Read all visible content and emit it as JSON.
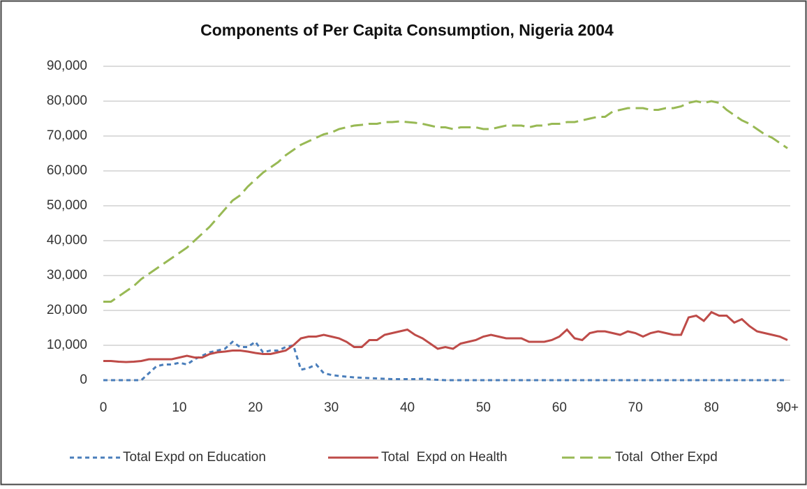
{
  "chart_data": {
    "type": "line",
    "title": "Components of Per Capita Consumption, Nigeria 2004",
    "x": [
      0,
      1,
      2,
      3,
      4,
      5,
      6,
      7,
      8,
      9,
      10,
      11,
      12,
      13,
      14,
      15,
      16,
      17,
      18,
      19,
      20,
      21,
      22,
      23,
      24,
      25,
      26,
      27,
      28,
      29,
      30,
      31,
      32,
      33,
      34,
      35,
      36,
      37,
      38,
      39,
      40,
      41,
      42,
      43,
      44,
      45,
      46,
      47,
      48,
      49,
      50,
      51,
      52,
      53,
      54,
      55,
      56,
      57,
      58,
      59,
      60,
      61,
      62,
      63,
      64,
      65,
      66,
      67,
      68,
      69,
      70,
      71,
      72,
      73,
      74,
      75,
      76,
      77,
      78,
      79,
      80,
      81,
      82,
      83,
      84,
      85,
      86,
      87,
      88,
      89,
      90
    ],
    "xlim": [
      0,
      90
    ],
    "xticks": [
      0,
      10,
      20,
      30,
      40,
      50,
      60,
      70,
      80,
      {
        "value": 90,
        "label": "90+"
      }
    ],
    "ylim": [
      0,
      90000
    ],
    "yticks": [
      0,
      {
        "value": 10000,
        "label": "10,000"
      },
      {
        "value": 20000,
        "label": "20,000"
      },
      {
        "value": 30000,
        "label": "30,000"
      },
      {
        "value": 40000,
        "label": "40,000"
      },
      {
        "value": 50000,
        "label": "50,000"
      },
      {
        "value": 60000,
        "label": "60,000"
      },
      {
        "value": 70000,
        "label": "70,000"
      },
      {
        "value": 80000,
        "label": "80,000"
      },
      {
        "value": 90000,
        "label": "90,000"
      }
    ],
    "grid": true,
    "legend": "bottom",
    "series": [
      {
        "name": "Total Expd on Education",
        "color": "#4a7ebb",
        "dash": "6 5",
        "values": [
          0,
          0,
          0,
          0,
          0,
          0,
          2000,
          4000,
          4500,
          4500,
          5000,
          4500,
          6000,
          7000,
          8000,
          8500,
          9000,
          11000,
          9500,
          9500,
          11000,
          8000,
          8500,
          8500,
          9500,
          10000,
          3000,
          3500,
          4500,
          2000,
          1500,
          1200,
          1000,
          800,
          700,
          600,
          500,
          400,
          300,
          300,
          300,
          300,
          400,
          200,
          100,
          0,
          0,
          0,
          0,
          0,
          0,
          0,
          0,
          0,
          0,
          0,
          0,
          0,
          0,
          0,
          0,
          0,
          0,
          0,
          0,
          0,
          0,
          0,
          0,
          0,
          0,
          0,
          0,
          0,
          0,
          0,
          0,
          0,
          0,
          0,
          0,
          0,
          0,
          0,
          0,
          0,
          0,
          0,
          0,
          0,
          0
        ]
      },
      {
        "name": "Total  Expd on Health",
        "color": "#be4b48",
        "dash": "none",
        "values": [
          5500,
          5500,
          5300,
          5200,
          5300,
          5500,
          6000,
          6000,
          6000,
          6000,
          6500,
          7000,
          6500,
          6500,
          7500,
          8000,
          8200,
          8500,
          8500,
          8200,
          7800,
          7500,
          7500,
          8000,
          8500,
          10000,
          12000,
          12500,
          12500,
          13000,
          12500,
          12000,
          11000,
          9500,
          9500,
          11500,
          11500,
          13000,
          13500,
          14000,
          14500,
          13000,
          12000,
          10500,
          9000,
          9500,
          9000,
          10500,
          11000,
          11500,
          12500,
          13000,
          12500,
          12000,
          12000,
          12000,
          11000,
          11000,
          11000,
          11500,
          12500,
          14500,
          12000,
          11500,
          13500,
          14000,
          14000,
          13500,
          13000,
          14000,
          13500,
          12500,
          13500,
          14000,
          13500,
          13000,
          13000,
          18000,
          18500,
          17000,
          19500,
          18500,
          18500,
          16500,
          17500,
          15500,
          14000,
          13500,
          13000,
          12500,
          11500
        ]
      },
      {
        "name": "Total  Other Expd",
        "color": "#98b954",
        "dash": "18 8",
        "values": [
          22500,
          22500,
          24000,
          25500,
          27000,
          29000,
          30500,
          32000,
          33500,
          35000,
          36500,
          38000,
          40000,
          42000,
          44000,
          46500,
          49000,
          51500,
          53000,
          55500,
          57500,
          59500,
          61000,
          62500,
          64500,
          66000,
          67500,
          68500,
          69500,
          70500,
          71000,
          72000,
          72500,
          73000,
          73200,
          73500,
          73500,
          74000,
          74000,
          74200,
          74000,
          73800,
          73500,
          73000,
          72500,
          72500,
          72000,
          72500,
          72500,
          72500,
          72000,
          72000,
          72500,
          73000,
          73000,
          73000,
          72500,
          73000,
          73000,
          73500,
          73500,
          74000,
          74000,
          74500,
          75000,
          75500,
          75500,
          77000,
          77500,
          78000,
          78000,
          78000,
          77500,
          77500,
          78000,
          78000,
          78500,
          79500,
          80000,
          79500,
          80000,
          79500,
          77500,
          76000,
          74500,
          73500,
          72000,
          70500,
          69500,
          68000,
          66500
        ]
      }
    ]
  }
}
